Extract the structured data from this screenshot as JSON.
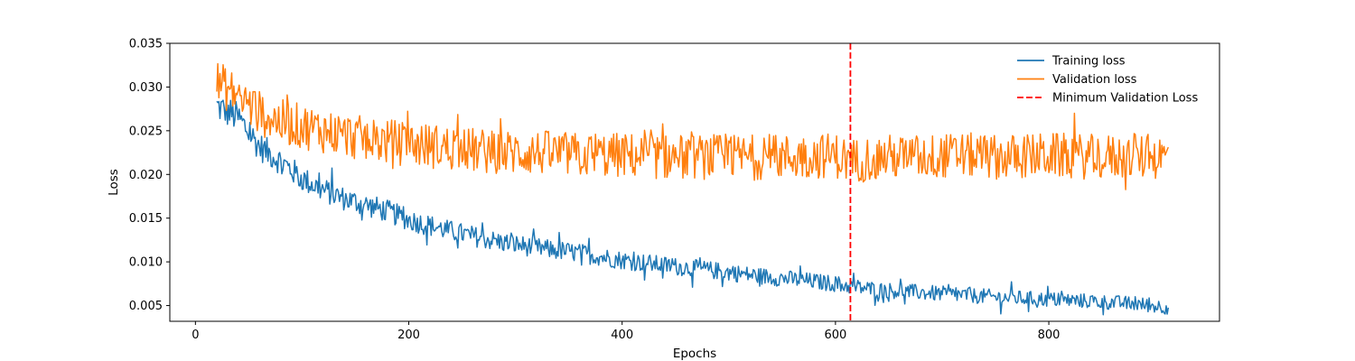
{
  "chart_data": {
    "type": "line",
    "xlabel": "Epochs",
    "ylabel": "Loss",
    "xlim": [
      -24,
      960
    ],
    "ylim": [
      0.0032,
      0.035
    ],
    "x_ticks": [
      0,
      200,
      400,
      600,
      800
    ],
    "y_ticks": [
      0.005,
      0.01,
      0.015,
      0.02,
      0.025,
      0.03,
      0.035
    ],
    "y_tick_labels": [
      "0.005",
      "0.010",
      "0.015",
      "0.020",
      "0.025",
      "0.030",
      "0.035"
    ],
    "grid": false,
    "legend_position": "top-right",
    "series": [
      {
        "name": "Training loss",
        "color": "#1f77b4",
        "style": "solid",
        "x": [
          20,
          40,
          60,
          80,
          100,
          120,
          140,
          160,
          180,
          200,
          240,
          280,
          320,
          360,
          400,
          440,
          480,
          520,
          560,
          600,
          614,
          640,
          680,
          720,
          760,
          800,
          840,
          880,
          912
        ],
        "y": [
          0.0278,
          0.0265,
          0.0232,
          0.0215,
          0.0195,
          0.0182,
          0.0172,
          0.0165,
          0.0158,
          0.0148,
          0.0135,
          0.0124,
          0.0116,
          0.011,
          0.0102,
          0.0096,
          0.0091,
          0.0085,
          0.008,
          0.0075,
          0.0072,
          0.0068,
          0.0065,
          0.0062,
          0.0059,
          0.0057,
          0.0055,
          0.0052,
          0.0048
        ]
      },
      {
        "name": "Validation loss",
        "color": "#ff7f0e",
        "style": "solid",
        "x": [
          20,
          40,
          60,
          80,
          100,
          120,
          140,
          160,
          200,
          240,
          280,
          320,
          360,
          400,
          440,
          480,
          520,
          560,
          600,
          614,
          640,
          680,
          720,
          760,
          800,
          840,
          880,
          912
        ],
        "y": [
          0.0305,
          0.029,
          0.027,
          0.026,
          0.0255,
          0.025,
          0.0245,
          0.024,
          0.0235,
          0.023,
          0.0225,
          0.0225,
          0.0222,
          0.0222,
          0.022,
          0.022,
          0.022,
          0.022,
          0.0222,
          0.0215,
          0.022,
          0.022,
          0.0222,
          0.022,
          0.0222,
          0.022,
          0.022,
          0.022
        ]
      },
      {
        "name": "Minimum Validation Loss",
        "color": "#ff0000",
        "style": "dashed",
        "type": "vline",
        "x_value": 614
      }
    ]
  }
}
